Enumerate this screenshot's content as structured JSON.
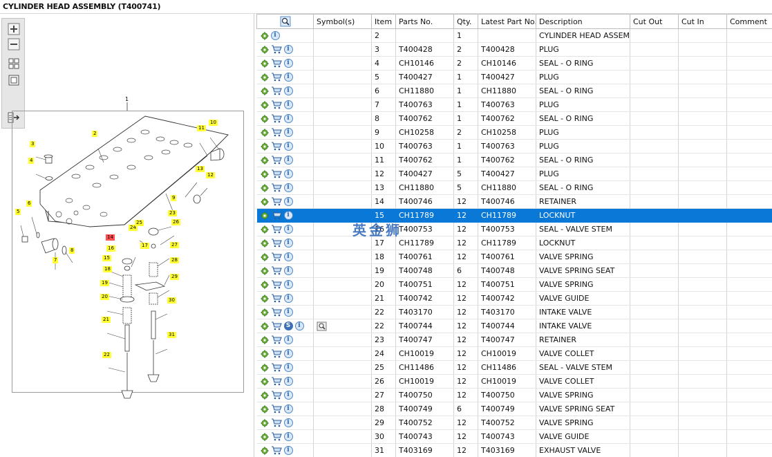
{
  "title": "CYLINDER HEAD ASSEMBLY (T400741)",
  "watermark": "英金狮",
  "table": {
    "headers": {
      "icons": "",
      "symbols": "Symbol(s)",
      "item": "Item",
      "parts_no": "Parts No.",
      "qty": "Qty.",
      "latest": "Latest Part No.",
      "description": "Description",
      "cut_out": "Cut Out",
      "cut_in": "Cut In",
      "comment": "Comment"
    },
    "selected_index": 13,
    "rows": [
      {
        "item": "2",
        "parts_no": "",
        "qty": "1",
        "latest": "",
        "description": "CYLINDER HEAD ASSEMBLY",
        "cart": false,
        "s": false,
        "sym": false
      },
      {
        "item": "3",
        "parts_no": "T400428",
        "qty": "2",
        "latest": "T400428",
        "description": "PLUG",
        "cart": true,
        "s": false,
        "sym": false
      },
      {
        "item": "4",
        "parts_no": "CH10146",
        "qty": "2",
        "latest": "CH10146",
        "description": "SEAL - O RING",
        "cart": true,
        "s": false,
        "sym": false
      },
      {
        "item": "5",
        "parts_no": "T400427",
        "qty": "1",
        "latest": "T400427",
        "description": "PLUG",
        "cart": true,
        "s": false,
        "sym": false
      },
      {
        "item": "6",
        "parts_no": "CH11880",
        "qty": "1",
        "latest": "CH11880",
        "description": "SEAL - O RING",
        "cart": true,
        "s": false,
        "sym": false
      },
      {
        "item": "7",
        "parts_no": "T400763",
        "qty": "1",
        "latest": "T400763",
        "description": "PLUG",
        "cart": true,
        "s": false,
        "sym": false
      },
      {
        "item": "8",
        "parts_no": "T400762",
        "qty": "1",
        "latest": "T400762",
        "description": "SEAL - O RING",
        "cart": true,
        "s": false,
        "sym": false
      },
      {
        "item": "9",
        "parts_no": "CH10258",
        "qty": "2",
        "latest": "CH10258",
        "description": "PLUG",
        "cart": true,
        "s": false,
        "sym": false
      },
      {
        "item": "10",
        "parts_no": "T400763",
        "qty": "1",
        "latest": "T400763",
        "description": "PLUG",
        "cart": true,
        "s": false,
        "sym": false
      },
      {
        "item": "11",
        "parts_no": "T400762",
        "qty": "1",
        "latest": "T400762",
        "description": "SEAL - O RING",
        "cart": true,
        "s": false,
        "sym": false
      },
      {
        "item": "12",
        "parts_no": "T400427",
        "qty": "5",
        "latest": "T400427",
        "description": "PLUG",
        "cart": true,
        "s": false,
        "sym": false
      },
      {
        "item": "13",
        "parts_no": "CH11880",
        "qty": "5",
        "latest": "CH11880",
        "description": "SEAL - O RING",
        "cart": true,
        "s": false,
        "sym": false
      },
      {
        "item": "14",
        "parts_no": "T400746",
        "qty": "12",
        "latest": "T400746",
        "description": "RETAINER",
        "cart": true,
        "s": false,
        "sym": false
      },
      {
        "item": "15",
        "parts_no": "CH11789",
        "qty": "12",
        "latest": "CH11789",
        "description": "LOCKNUT",
        "cart": true,
        "s": false,
        "sym": false
      },
      {
        "item": "16",
        "parts_no": "T400753",
        "qty": "12",
        "latest": "T400753",
        "description": "SEAL - VALVE STEM",
        "cart": true,
        "s": false,
        "sym": false
      },
      {
        "item": "17",
        "parts_no": "CH11789",
        "qty": "12",
        "latest": "CH11789",
        "description": "LOCKNUT",
        "cart": true,
        "s": false,
        "sym": false
      },
      {
        "item": "18",
        "parts_no": "T400761",
        "qty": "12",
        "latest": "T400761",
        "description": "VALVE SPRING",
        "cart": true,
        "s": false,
        "sym": false
      },
      {
        "item": "19",
        "parts_no": "T400748",
        "qty": "6",
        "latest": "T400748",
        "description": "VALVE SPRING SEAT",
        "cart": true,
        "s": false,
        "sym": false
      },
      {
        "item": "20",
        "parts_no": "T400751",
        "qty": "12",
        "latest": "T400751",
        "description": "VALVE SPRING",
        "cart": true,
        "s": false,
        "sym": false
      },
      {
        "item": "21",
        "parts_no": "T400742",
        "qty": "12",
        "latest": "T400742",
        "description": "VALVE GUIDE",
        "cart": true,
        "s": false,
        "sym": false
      },
      {
        "item": "22",
        "parts_no": "T403170",
        "qty": "12",
        "latest": "T403170",
        "description": "INTAKE VALVE",
        "cart": true,
        "s": false,
        "sym": false
      },
      {
        "item": "22",
        "parts_no": "T400744",
        "qty": "12",
        "latest": "T400744",
        "description": "INTAKE VALVE",
        "cart": true,
        "s": true,
        "sym": true
      },
      {
        "item": "23",
        "parts_no": "T400747",
        "qty": "12",
        "latest": "T400747",
        "description": "RETAINER",
        "cart": true,
        "s": false,
        "sym": false
      },
      {
        "item": "24",
        "parts_no": "CH10019",
        "qty": "12",
        "latest": "CH10019",
        "description": "VALVE COLLET",
        "cart": true,
        "s": false,
        "sym": false
      },
      {
        "item": "25",
        "parts_no": "CH11486",
        "qty": "12",
        "latest": "CH11486",
        "description": "SEAL - VALVE STEM",
        "cart": true,
        "s": false,
        "sym": false
      },
      {
        "item": "26",
        "parts_no": "CH10019",
        "qty": "12",
        "latest": "CH10019",
        "description": "VALVE COLLET",
        "cart": true,
        "s": false,
        "sym": false
      },
      {
        "item": "27",
        "parts_no": "T400750",
        "qty": "12",
        "latest": "T400750",
        "description": "VALVE SPRING",
        "cart": true,
        "s": false,
        "sym": false
      },
      {
        "item": "28",
        "parts_no": "T400749",
        "qty": "6",
        "latest": "T400749",
        "description": "VALVE SPRING SEAT",
        "cart": true,
        "s": false,
        "sym": false
      },
      {
        "item": "29",
        "parts_no": "T400752",
        "qty": "12",
        "latest": "T400752",
        "description": "VALVE SPRING",
        "cart": true,
        "s": false,
        "sym": false
      },
      {
        "item": "30",
        "parts_no": "T400743",
        "qty": "12",
        "latest": "T400743",
        "description": "VALVE GUIDE",
        "cart": true,
        "s": false,
        "sym": false
      },
      {
        "item": "31",
        "parts_no": "T403169",
        "qty": "12",
        "latest": "T403169",
        "description": "EXHAUST VALVE",
        "cart": true,
        "s": false,
        "sym": false
      }
    ]
  },
  "diagram": {
    "callouts": [
      {
        "label": "1",
        "plain": true
      },
      {
        "label": "2"
      },
      {
        "label": "3"
      },
      {
        "label": "4"
      },
      {
        "label": "5"
      },
      {
        "label": "6"
      },
      {
        "label": "7"
      },
      {
        "label": "8"
      },
      {
        "label": "9"
      },
      {
        "label": "10"
      },
      {
        "label": "11"
      },
      {
        "label": "12"
      },
      {
        "label": "13"
      },
      {
        "label": "14",
        "red": true
      },
      {
        "label": "15"
      },
      {
        "label": "16"
      },
      {
        "label": "17"
      },
      {
        "label": "18"
      },
      {
        "label": "19"
      },
      {
        "label": "20"
      },
      {
        "label": "21"
      },
      {
        "label": "22"
      },
      {
        "label": "23"
      },
      {
        "label": "24"
      },
      {
        "label": "25"
      },
      {
        "label": "26"
      },
      {
        "label": "27"
      },
      {
        "label": "28"
      },
      {
        "label": "29"
      },
      {
        "label": "30"
      },
      {
        "label": "31"
      }
    ]
  },
  "toolbar": {
    "buttons": [
      "zoom-in-icon",
      "zoom-out-icon",
      "fit-all-icon",
      "fit-window-icon",
      "export-icon"
    ]
  }
}
